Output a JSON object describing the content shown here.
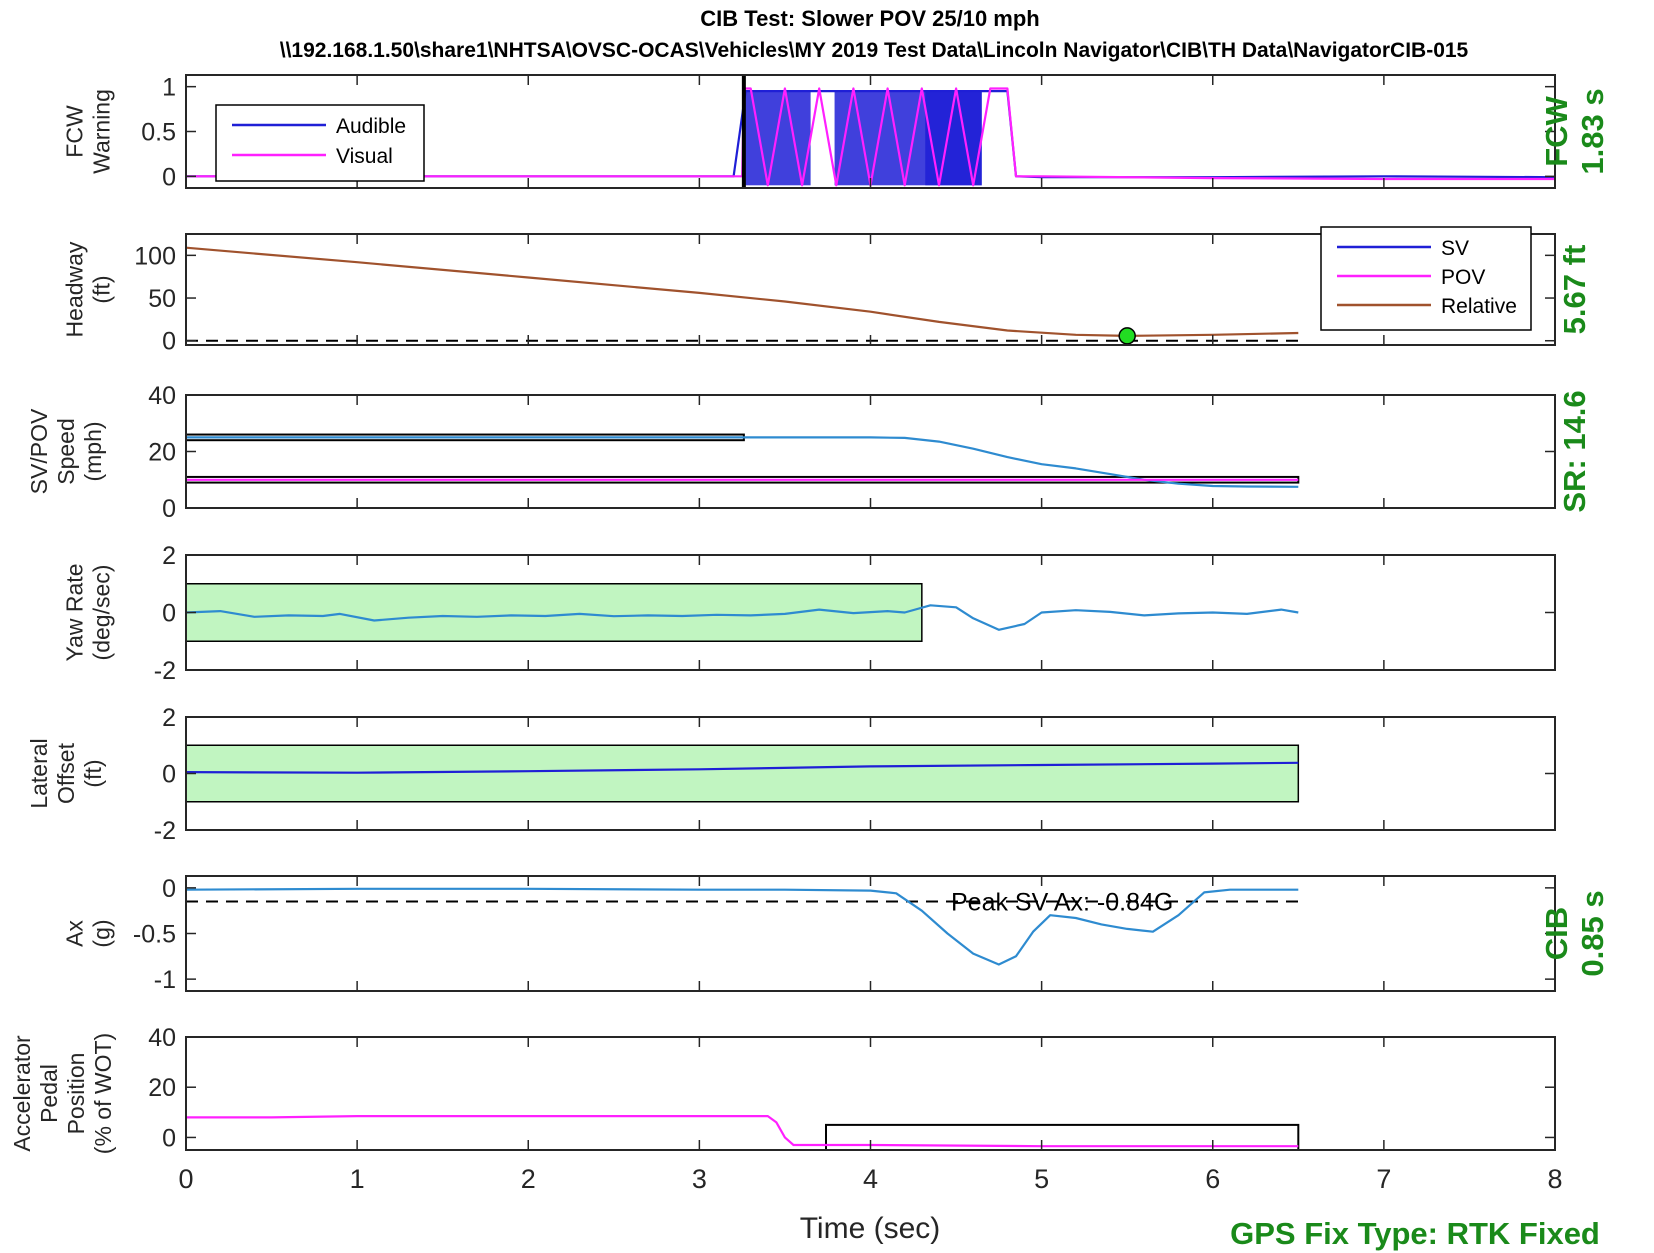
{
  "title": "CIB Test: Slower POV 25/10 mph",
  "subtitle": "\\\\192.168.1.50\\share1\\NHTSA\\OVSC-OCAS\\Vehicles\\MY 2019 Test Data\\Lincoln Navigator\\CIB\\TH Data\\NavigatorCIB-015",
  "xlabel": "Time (sec)",
  "gps_label": "GPS Fix Type: RTK Fixed",
  "colors": {
    "sv": "#1f1fd6",
    "pov": "#ff20ff",
    "relative": "#a0522d",
    "signal": "#2e8bd0",
    "band": "#c1f5c1",
    "green_text": "#1a8a1a"
  },
  "chart_data": [
    {
      "id": "fcw",
      "type": "line",
      "ylabel": [
        "FCW",
        "Warning"
      ],
      "xlim": [
        0,
        8
      ],
      "ylim": [
        -0.13,
        1.13
      ],
      "yticks": [
        0,
        0.5,
        1
      ],
      "ytick_labels": [
        "0",
        "0.5",
        "1"
      ],
      "right_label": [
        "FCW",
        "1.83 s"
      ],
      "legend": [
        {
          "name": "Audible",
          "color_key": "sv"
        },
        {
          "name": "Visual",
          "color_key": "pov"
        }
      ],
      "marker_x": 3.26,
      "audible_bursts": [
        [
          3.27,
          3.65
        ],
        [
          3.79,
          4.65
        ],
        [
          4.32,
          4.65
        ]
      ],
      "series": [
        {
          "name": "Audible",
          "color_key": "sv",
          "x": [
            0,
            3.2,
            3.27,
            3.9,
            4.2,
            4.33,
            4.8,
            4.85,
            5.0,
            6.0,
            7.0,
            8.0
          ],
          "y": [
            0,
            0,
            0.95,
            0.95,
            0.95,
            0.95,
            0.95,
            0,
            -0.01,
            -0.01,
            0,
            -0.01
          ]
        },
        {
          "name": "Visual",
          "color_key": "pov",
          "x": [
            0,
            3.25,
            3.26,
            3.3,
            3.4,
            3.5,
            3.6,
            3.7,
            3.8,
            3.9,
            4.0,
            4.1,
            4.2,
            4.3,
            4.4,
            4.5,
            4.6,
            4.7,
            4.8,
            4.85,
            5.0,
            6.0,
            7.0,
            8.0
          ],
          "y": [
            0,
            0,
            0.98,
            0.98,
            -0.1,
            0.98,
            -0.1,
            0.98,
            -0.1,
            0.98,
            -0.1,
            0.98,
            -0.1,
            0.98,
            -0.1,
            0.98,
            -0.1,
            0.98,
            0.98,
            0,
            0,
            -0.02,
            -0.03,
            -0.03
          ]
        }
      ]
    },
    {
      "id": "headway",
      "type": "line",
      "ylabel": [
        "Headway",
        "(ft)"
      ],
      "xlim": [
        0,
        8
      ],
      "ylim": [
        -5,
        125
      ],
      "yticks": [
        0,
        50,
        100
      ],
      "ytick_labels": [
        "0",
        "50",
        "100"
      ],
      "right_label": [
        "5.67 ft"
      ],
      "legend": [
        {
          "name": "SV",
          "color_key": "sv"
        },
        {
          "name": "POV",
          "color_key": "pov"
        },
        {
          "name": "Relative",
          "color_key": "relative"
        }
      ],
      "dashed_y": 0,
      "min_point": {
        "x": 5.5,
        "y": 5.67
      },
      "series": [
        {
          "name": "Relative",
          "color_key": "relative",
          "x": [
            0,
            1,
            2,
            3,
            3.5,
            4,
            4.4,
            4.8,
            5.2,
            5.5,
            6.0,
            6.5
          ],
          "y": [
            109,
            92,
            74,
            56,
            46,
            34,
            22,
            12,
            7,
            5.67,
            7,
            9
          ]
        }
      ]
    },
    {
      "id": "speed",
      "type": "line",
      "ylabel": [
        "SV/POV",
        "Speed",
        "(mph)"
      ],
      "xlim": [
        0,
        8
      ],
      "ylim": [
        0,
        40
      ],
      "yticks": [
        0,
        20,
        40
      ],
      "ytick_labels": [
        "0",
        "20",
        "40"
      ],
      "right_label": [
        "SR: 14.6"
      ],
      "sv_band": {
        "x": [
          0,
          3.26
        ],
        "y": [
          24,
          26
        ]
      },
      "pov_band": {
        "x": [
          0,
          6.5
        ],
        "y": [
          9,
          11
        ]
      },
      "series": [
        {
          "name": "SV",
          "color_key": "signal",
          "x": [
            0,
            1,
            2,
            3,
            3.5,
            4.0,
            4.2,
            4.4,
            4.6,
            4.8,
            5.0,
            5.2,
            5.4,
            5.6,
            5.8,
            6.0,
            6.2,
            6.5
          ],
          "y": [
            25,
            25,
            25,
            25,
            25,
            25,
            24.8,
            23.5,
            21,
            18,
            15.5,
            14,
            12,
            10,
            8.6,
            7.8,
            7.6,
            7.5
          ]
        },
        {
          "name": "POV",
          "color_key": "pov",
          "x": [
            0,
            6.5
          ],
          "y": [
            10,
            10
          ]
        }
      ]
    },
    {
      "id": "yaw",
      "type": "line",
      "ylabel": [
        "Yaw Rate",
        "(deg/sec)"
      ],
      "xlim": [
        0,
        8
      ],
      "ylim": [
        -2,
        2
      ],
      "yticks": [
        -2,
        0,
        2
      ],
      "ytick_labels": [
        "-2",
        "0",
        "2"
      ],
      "band": {
        "x": [
          0,
          4.3
        ],
        "y": [
          -1,
          1
        ]
      },
      "series": [
        {
          "name": "Yaw",
          "color_key": "signal",
          "x": [
            0,
            0.2,
            0.4,
            0.6,
            0.8,
            0.9,
            1.1,
            1.3,
            1.5,
            1.7,
            1.9,
            2.1,
            2.3,
            2.5,
            2.7,
            2.9,
            3.1,
            3.3,
            3.5,
            3.7,
            3.9,
            4.1,
            4.2,
            4.35,
            4.5,
            4.6,
            4.75,
            4.9,
            5.0,
            5.2,
            5.4,
            5.6,
            5.8,
            6.0,
            6.2,
            6.4,
            6.5
          ],
          "y": [
            0,
            0.05,
            -0.15,
            -0.1,
            -0.12,
            -0.05,
            -0.28,
            -0.18,
            -0.12,
            -0.15,
            -0.1,
            -0.12,
            -0.05,
            -0.13,
            -0.1,
            -0.12,
            -0.08,
            -0.1,
            -0.05,
            0.1,
            -0.02,
            0.05,
            0.0,
            0.25,
            0.18,
            -0.2,
            -0.6,
            -0.4,
            0.0,
            0.08,
            0.02,
            -0.1,
            -0.03,
            0.0,
            -0.05,
            0.1,
            0.0
          ]
        }
      ]
    },
    {
      "id": "lateral",
      "type": "line",
      "ylabel": [
        "Lateral",
        "Offset",
        "(ft)"
      ],
      "xlim": [
        0,
        8
      ],
      "ylim": [
        -2,
        2
      ],
      "yticks": [
        -2,
        0,
        2
      ],
      "ytick_labels": [
        "-2",
        "0",
        "2"
      ],
      "band": {
        "x": [
          0,
          6.5
        ],
        "y": [
          -1,
          1
        ]
      },
      "series": [
        {
          "name": "Lateral",
          "color_key": "sv",
          "x": [
            0,
            1,
            2,
            3,
            4,
            5,
            6,
            6.5
          ],
          "y": [
            0.05,
            0.03,
            0.08,
            0.15,
            0.25,
            0.3,
            0.35,
            0.38
          ]
        }
      ]
    },
    {
      "id": "ax",
      "type": "line",
      "ylabel": [
        "Ax",
        "(g)"
      ],
      "xlim": [
        0,
        8
      ],
      "ylim": [
        -1.13,
        0.13
      ],
      "yticks": [
        -1,
        -0.5,
        0
      ],
      "ytick_labels": [
        "-1",
        "-0.5",
        "0"
      ],
      "right_label": [
        "CIB",
        "0.85 s"
      ],
      "dashed_y": -0.15,
      "annotation": {
        "text": "Peak SV Ax: -0.84G",
        "x": 5.12,
        "y": -0.15
      },
      "series": [
        {
          "name": "Ax",
          "color_key": "signal",
          "x": [
            0,
            1,
            2,
            3,
            3.5,
            4.0,
            4.15,
            4.3,
            4.45,
            4.6,
            4.75,
            4.85,
            4.95,
            5.05,
            5.2,
            5.35,
            5.5,
            5.65,
            5.8,
            5.95,
            6.1,
            6.3,
            6.5
          ],
          "y": [
            -0.02,
            -0.01,
            -0.01,
            -0.02,
            -0.02,
            -0.03,
            -0.06,
            -0.25,
            -0.5,
            -0.72,
            -0.84,
            -0.75,
            -0.48,
            -0.3,
            -0.33,
            -0.4,
            -0.45,
            -0.48,
            -0.3,
            -0.05,
            -0.02,
            -0.02,
            -0.02
          ]
        }
      ]
    },
    {
      "id": "pedal",
      "type": "line",
      "ylabel": [
        "Accelerator",
        "Pedal",
        "Position",
        "(% of WOT)"
      ],
      "xlim": [
        0,
        8
      ],
      "ylim": [
        -5,
        40
      ],
      "yticks": [
        0,
        20,
        40
      ],
      "ytick_labels": [
        "0",
        "20",
        "40"
      ],
      "xticks": [
        0,
        1,
        2,
        3,
        4,
        5,
        6,
        7,
        8
      ],
      "xtick_labels": [
        "0",
        "1",
        "2",
        "3",
        "4",
        "5",
        "6",
        "7",
        "8"
      ],
      "box": {
        "x": [
          3.74,
          6.5
        ],
        "y": [
          -5,
          5
        ]
      },
      "series": [
        {
          "name": "Pedal",
          "color_key": "pov",
          "x": [
            0,
            0.5,
            1.0,
            2.0,
            3.0,
            3.4,
            3.45,
            3.5,
            3.55,
            4.0,
            5.0,
            6.0,
            6.5
          ],
          "y": [
            8,
            8,
            8.5,
            8.5,
            8.5,
            8.5,
            6,
            0,
            -3,
            -3,
            -3.5,
            -3.5,
            -3.5
          ]
        }
      ]
    }
  ]
}
